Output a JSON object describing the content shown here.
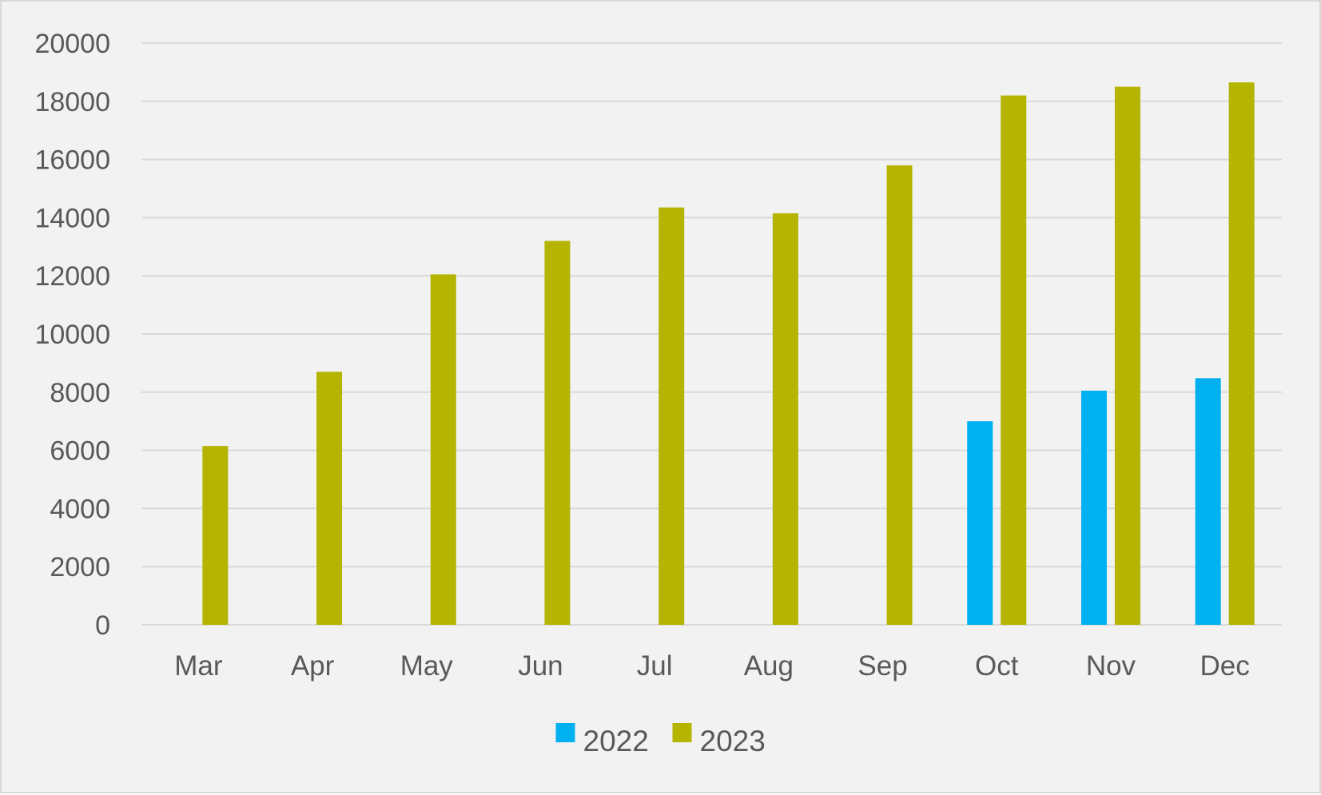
{
  "chart_data": {
    "type": "bar",
    "categories": [
      "Mar",
      "Apr",
      "May",
      "Jun",
      "Jul",
      "Aug",
      "Sep",
      "Oct",
      "Nov",
      "Dec"
    ],
    "series": [
      {
        "name": "2022",
        "color": "#00b0f0",
        "values": [
          null,
          null,
          null,
          null,
          null,
          null,
          null,
          7000,
          8050,
          8480
        ]
      },
      {
        "name": "2023",
        "color": "#b5b400",
        "values": [
          6150,
          8700,
          12050,
          13200,
          14350,
          14150,
          15800,
          18200,
          18500,
          18650
        ]
      }
    ],
    "title": "",
    "xlabel": "",
    "ylabel": "",
    "ylim": [
      0,
      20000
    ],
    "yticks": [
      0,
      2000,
      4000,
      6000,
      8000,
      10000,
      12000,
      14000,
      16000,
      18000,
      20000
    ],
    "grid": true,
    "legend_position": "bottom",
    "background_color": "#f2f2f2",
    "gridline_color": "#d9d9d9",
    "text_color": "#595959"
  }
}
